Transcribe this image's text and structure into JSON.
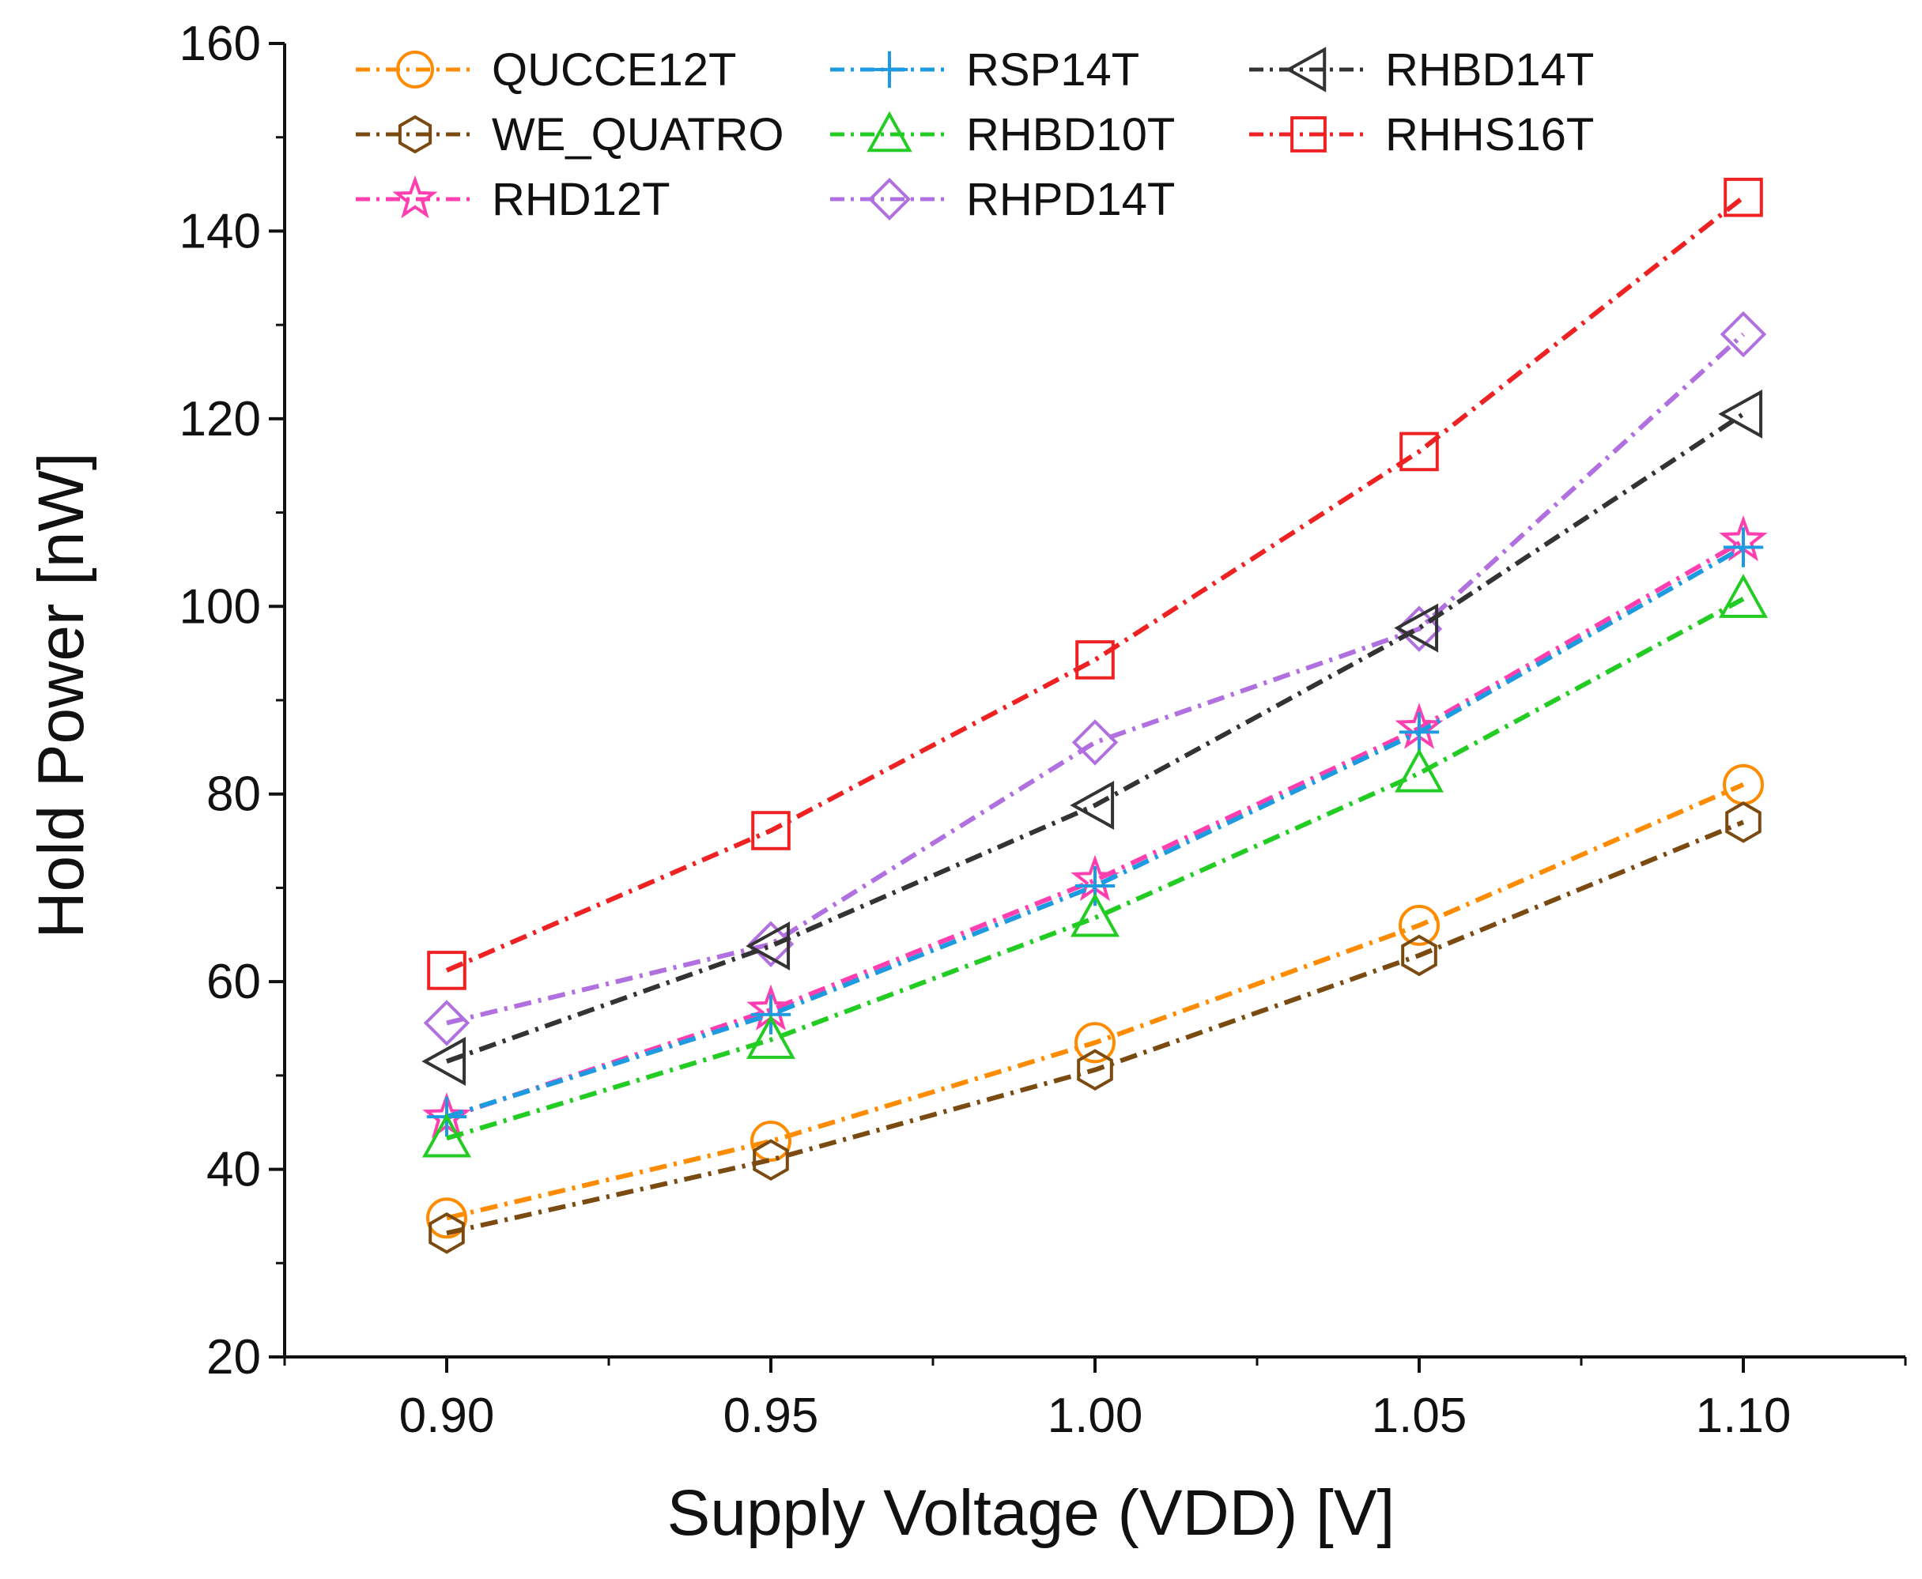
{
  "chart_data": {
    "type": "line",
    "title": "",
    "xlabel": "Supply Voltage (VDD) [V]",
    "ylabel": "Hold Power [nW]",
    "xlim": [
      0.875,
      1.125
    ],
    "ylim": [
      20,
      160
    ],
    "x": [
      0.9,
      0.95,
      1.0,
      1.05,
      1.1
    ],
    "xticks": [
      {
        "value": 0.9,
        "label": "0.90"
      },
      {
        "value": 0.95,
        "label": "0.95"
      },
      {
        "value": 1.0,
        "label": "1.00"
      },
      {
        "value": 1.05,
        "label": "1.05"
      },
      {
        "value": 1.1,
        "label": "1.10"
      }
    ],
    "yticks": [
      {
        "value": 20,
        "label": "20"
      },
      {
        "value": 40,
        "label": "40"
      },
      {
        "value": 60,
        "label": "60"
      },
      {
        "value": 80,
        "label": "80"
      },
      {
        "value": 100,
        "label": "100"
      },
      {
        "value": 120,
        "label": "120"
      },
      {
        "value": 140,
        "label": "140"
      },
      {
        "value": 160,
        "label": "160"
      }
    ],
    "legend_position": "top-left",
    "series": [
      {
        "name": "QUCCE12T",
        "color": "#ff8c00",
        "marker": "circle",
        "values": [
          34.8,
          43.0,
          53.5,
          66.0,
          81.0
        ]
      },
      {
        "name": "WE_QUATRO",
        "color": "#7a4a10",
        "marker": "hexagon",
        "values": [
          33.2,
          41.0,
          50.6,
          62.8,
          77.0
        ]
      },
      {
        "name": "RHD12T",
        "color": "#ff3fb0",
        "marker": "star",
        "values": [
          45.5,
          57.0,
          70.8,
          87.0,
          107.0
        ]
      },
      {
        "name": "RSP14T",
        "color": "#1e9be0",
        "marker": "plus",
        "values": [
          45.6,
          56.5,
          70.2,
          86.6,
          106.3
        ]
      },
      {
        "name": "RHBD10T",
        "color": "#22cc22",
        "marker": "triangle-up",
        "values": [
          43.3,
          53.8,
          66.8,
          82.2,
          100.8
        ]
      },
      {
        "name": "RHPD14T",
        "color": "#b070e0",
        "marker": "diamond",
        "values": [
          55.6,
          64.0,
          85.5,
          97.6,
          129.0
        ]
      },
      {
        "name": "RHBD14T",
        "color": "#333333",
        "marker": "triangle-left",
        "values": [
          51.5,
          63.8,
          78.8,
          97.7,
          120.5
        ]
      },
      {
        "name": "RHHS16T",
        "color": "#ee2222",
        "marker": "square",
        "values": [
          61.2,
          76.1,
          94.3,
          116.5,
          143.6
        ]
      }
    ]
  }
}
